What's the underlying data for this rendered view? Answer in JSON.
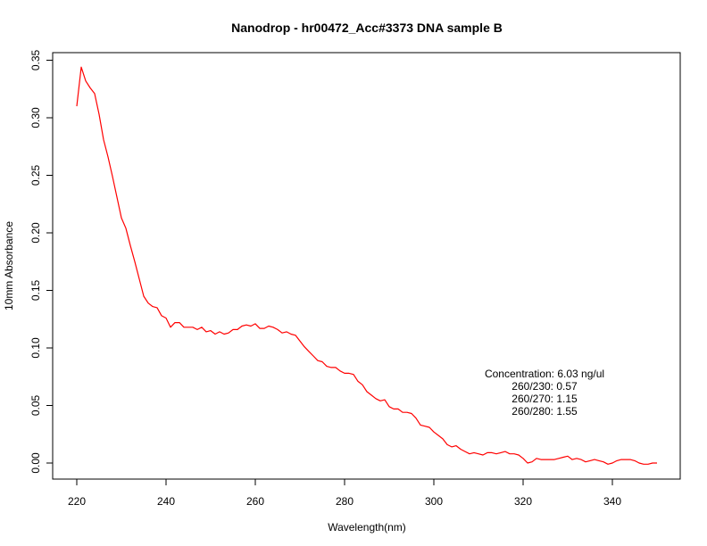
{
  "chart_data": {
    "type": "line",
    "title": "Nanodrop - hr00472_Acc#3373 DNA sample B",
    "xlabel": "Wavelength(nm)",
    "ylabel": "10mm Absorbance",
    "xlim": [
      220,
      350
    ],
    "ylim": [
      0.0,
      0.35
    ],
    "x_ticks": [
      220,
      240,
      260,
      280,
      300,
      320,
      340
    ],
    "x_tick_labels": [
      "220",
      "240",
      "260",
      "280",
      "300",
      "320",
      "340"
    ],
    "y_ticks": [
      0.0,
      0.05,
      0.1,
      0.15,
      0.2,
      0.25,
      0.3,
      0.35
    ],
    "y_tick_labels": [
      "0.00",
      "0.05",
      "0.10",
      "0.15",
      "0.20",
      "0.25",
      "0.30",
      "0.35"
    ],
    "grid": false,
    "series": [
      {
        "color": "#ff0000",
        "x": [
          220,
          221,
          222,
          223,
          224,
          225,
          226,
          227,
          228,
          229,
          230,
          231,
          232,
          233,
          234,
          235,
          236,
          237,
          238,
          239,
          240,
          241,
          242,
          243,
          244,
          245,
          246,
          247,
          248,
          249,
          250,
          251,
          252,
          253,
          254,
          255,
          256,
          257,
          258,
          259,
          260,
          261,
          262,
          263,
          264,
          265,
          266,
          267,
          268,
          269,
          270,
          271,
          272,
          273,
          274,
          275,
          276,
          277,
          278,
          279,
          280,
          281,
          282,
          283,
          284,
          285,
          286,
          287,
          288,
          289,
          290,
          291,
          292,
          293,
          294,
          295,
          296,
          297,
          298,
          299,
          300,
          301,
          302,
          303,
          304,
          305,
          306,
          307,
          308,
          309,
          310,
          311,
          312,
          313,
          314,
          315,
          316,
          317,
          318,
          319,
          320,
          321,
          322,
          323,
          324,
          325,
          326,
          327,
          328,
          329,
          330,
          331,
          332,
          333,
          334,
          335,
          336,
          337,
          338,
          339,
          340,
          341,
          342,
          343,
          344,
          345,
          346,
          347,
          348,
          349,
          350
        ],
        "y": [
          0.31,
          0.344,
          0.332,
          0.326,
          0.321,
          0.303,
          0.281,
          0.266,
          0.249,
          0.231,
          0.213,
          0.204,
          0.189,
          0.175,
          0.16,
          0.145,
          0.139,
          0.136,
          0.135,
          0.128,
          0.126,
          0.118,
          0.122,
          0.122,
          0.118,
          0.118,
          0.118,
          0.116,
          0.118,
          0.114,
          0.115,
          0.112,
          0.114,
          0.112,
          0.113,
          0.116,
          0.116,
          0.119,
          0.12,
          0.119,
          0.121,
          0.117,
          0.117,
          0.119,
          0.118,
          0.116,
          0.113,
          0.114,
          0.112,
          0.111,
          0.106,
          0.101,
          0.097,
          0.093,
          0.089,
          0.088,
          0.084,
          0.083,
          0.083,
          0.08,
          0.078,
          0.078,
          0.077,
          0.071,
          0.068,
          0.062,
          0.059,
          0.056,
          0.054,
          0.055,
          0.049,
          0.047,
          0.047,
          0.044,
          0.044,
          0.043,
          0.039,
          0.033,
          0.032,
          0.031,
          0.027,
          0.024,
          0.021,
          0.016,
          0.014,
          0.015,
          0.012,
          0.01,
          0.008,
          0.009,
          0.008,
          0.007,
          0.009,
          0.009,
          0.008,
          0.009,
          0.01,
          0.008,
          0.008,
          0.007,
          0.004,
          0.0,
          0.001,
          0.004,
          0.003,
          0.003,
          0.003,
          0.003,
          0.004,
          0.005,
          0.006,
          0.003,
          0.004,
          0.003,
          0.001,
          0.002,
          0.003,
          0.002,
          0.001,
          -0.001,
          0.0,
          0.002,
          0.003,
          0.003,
          0.003,
          0.002,
          0.0,
          -0.001,
          -0.001,
          0.0,
          0.0
        ]
      }
    ],
    "annotation": {
      "lines": [
        "Concentration: 6.03 ng/ul",
        "260/230: 0.57",
        "260/270: 1.15",
        "260/280: 1.55"
      ]
    }
  }
}
